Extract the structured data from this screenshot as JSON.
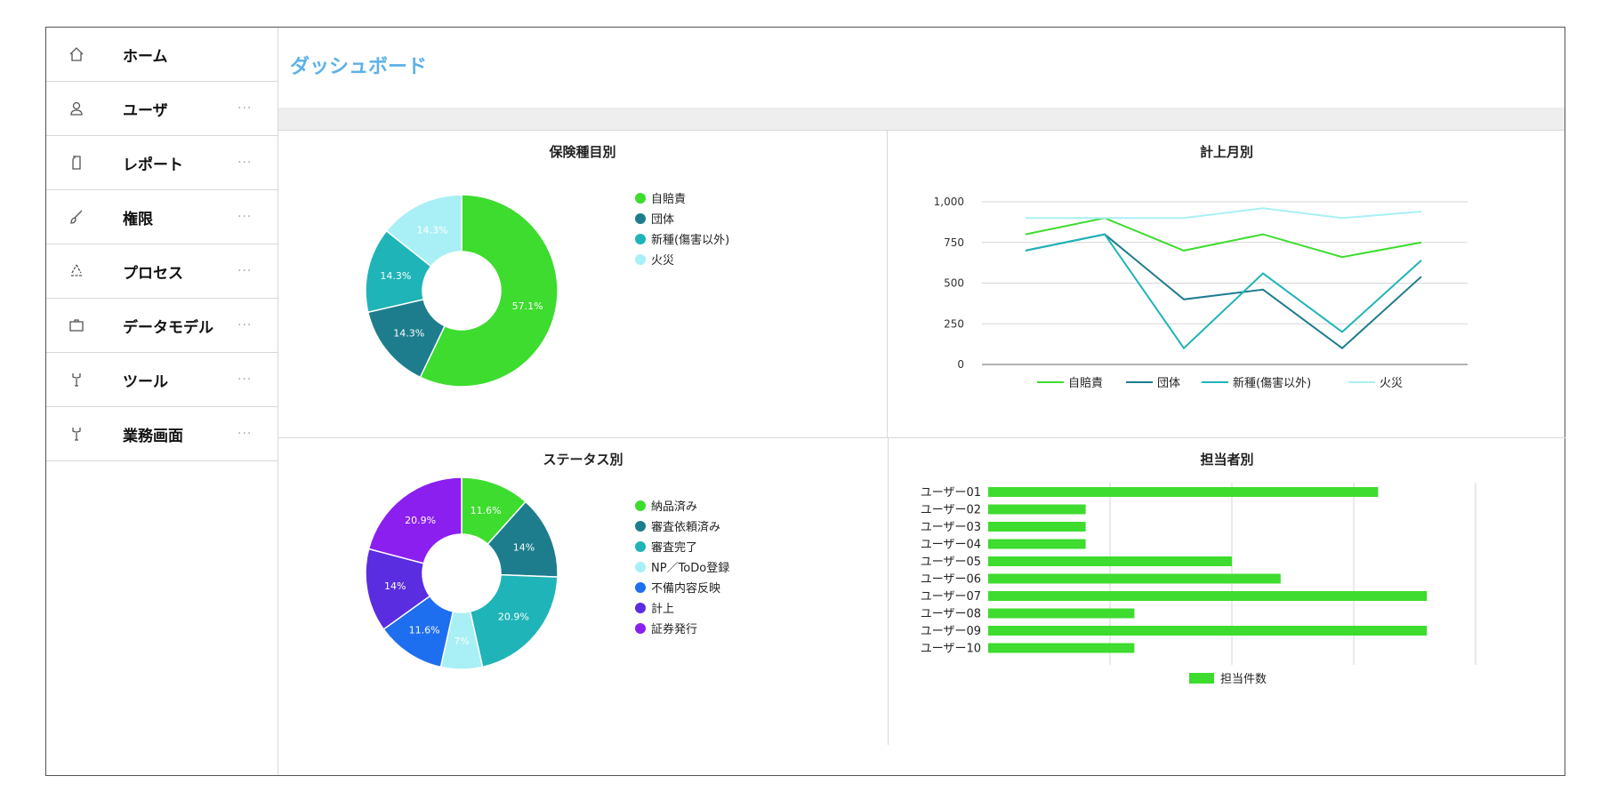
{
  "page": {
    "title": "ダッシュボード"
  },
  "sidebar": {
    "items": [
      {
        "label": "ホーム",
        "icon": "home-icon",
        "more": ""
      },
      {
        "label": "ユーザ",
        "icon": "user-icon",
        "more": "···"
      },
      {
        "label": "レポート",
        "icon": "document-icon",
        "more": "···"
      },
      {
        "label": "権限",
        "icon": "brush-icon",
        "more": "···"
      },
      {
        "label": "プロセス",
        "icon": "recycle-icon",
        "more": "···"
      },
      {
        "label": "データモデル",
        "icon": "briefcase-icon",
        "more": "···"
      },
      {
        "label": "ツール",
        "icon": "tool-icon",
        "more": "···"
      },
      {
        "label": "業務画面",
        "icon": "tool-icon",
        "more": "···"
      }
    ]
  },
  "chart_data": [
    {
      "id": "insurance",
      "type": "pie",
      "title": "保険種目別",
      "donut": true,
      "categories": [
        "自賠責",
        "団体",
        "新種(傷害以外)",
        "火災"
      ],
      "values": [
        57.1,
        14.3,
        14.3,
        14.3
      ],
      "labels": [
        "57.1%",
        "14.3%",
        "14.3%",
        "14.3%"
      ],
      "colors": [
        "#3ddc2e",
        "#1d7d8d",
        "#1fb4b8",
        "#a8f0f5"
      ],
      "legend_position": "right"
    },
    {
      "id": "monthly",
      "type": "line",
      "title": "計上月別",
      "x": [
        "1",
        "2",
        "3",
        "4",
        "5",
        "6"
      ],
      "ylim": [
        0,
        1000
      ],
      "yticks": [
        "0",
        "250",
        "500",
        "750",
        "1,000"
      ],
      "grid": true,
      "legend_position": "bottom",
      "series": [
        {
          "name": "自賠責",
          "values": [
            800,
            900,
            700,
            800,
            660,
            750
          ],
          "color": "#3ddc2e"
        },
        {
          "name": "団体",
          "values": [
            700,
            800,
            400,
            460,
            100,
            540
          ],
          "color": "#1d7d8d"
        },
        {
          "name": "新種(傷害以外)",
          "values": [
            700,
            800,
            100,
            560,
            200,
            640
          ],
          "color": "#1fb4b8"
        },
        {
          "name": "火災",
          "values": [
            900,
            900,
            900,
            960,
            900,
            940
          ],
          "color": "#a8f0f5"
        }
      ]
    },
    {
      "id": "status",
      "type": "pie",
      "title": "ステータス別",
      "donut": true,
      "categories": [
        "納品済み",
        "審査依頼済み",
        "審査完了",
        "NP／ToDo登録",
        "不備内容反映",
        "計上",
        "証券発行"
      ],
      "values": [
        11.6,
        14,
        20.9,
        7,
        11.6,
        14,
        20.9
      ],
      "labels": [
        "11.6%",
        "14%",
        "20.9%",
        "7%",
        "11.6%",
        "14%",
        "20.9%"
      ],
      "colors": [
        "#3ddc2e",
        "#1d7d8d",
        "#1fb4b8",
        "#a8f0f5",
        "#1e6ef0",
        "#5b2de0",
        "#8b1ff0"
      ],
      "legend_position": "right"
    },
    {
      "id": "assignee",
      "type": "bar",
      "orientation": "horizontal",
      "title": "担当者別",
      "categories": [
        "ユーザー01",
        "ユーザー02",
        "ユーザー03",
        "ユーザー04",
        "ユーザー05",
        "ユーザー06",
        "ユーザー07",
        "ユーザー08",
        "ユーザー09",
        "ユーザー10"
      ],
      "series": [
        {
          "name": "担当件数",
          "values": [
            16,
            4,
            4,
            4,
            10,
            12,
            18,
            6,
            18,
            6
          ],
          "color": "#3ddc2e"
        }
      ],
      "xlim": [
        0,
        20
      ],
      "grid": true,
      "legend_position": "bottom"
    }
  ]
}
